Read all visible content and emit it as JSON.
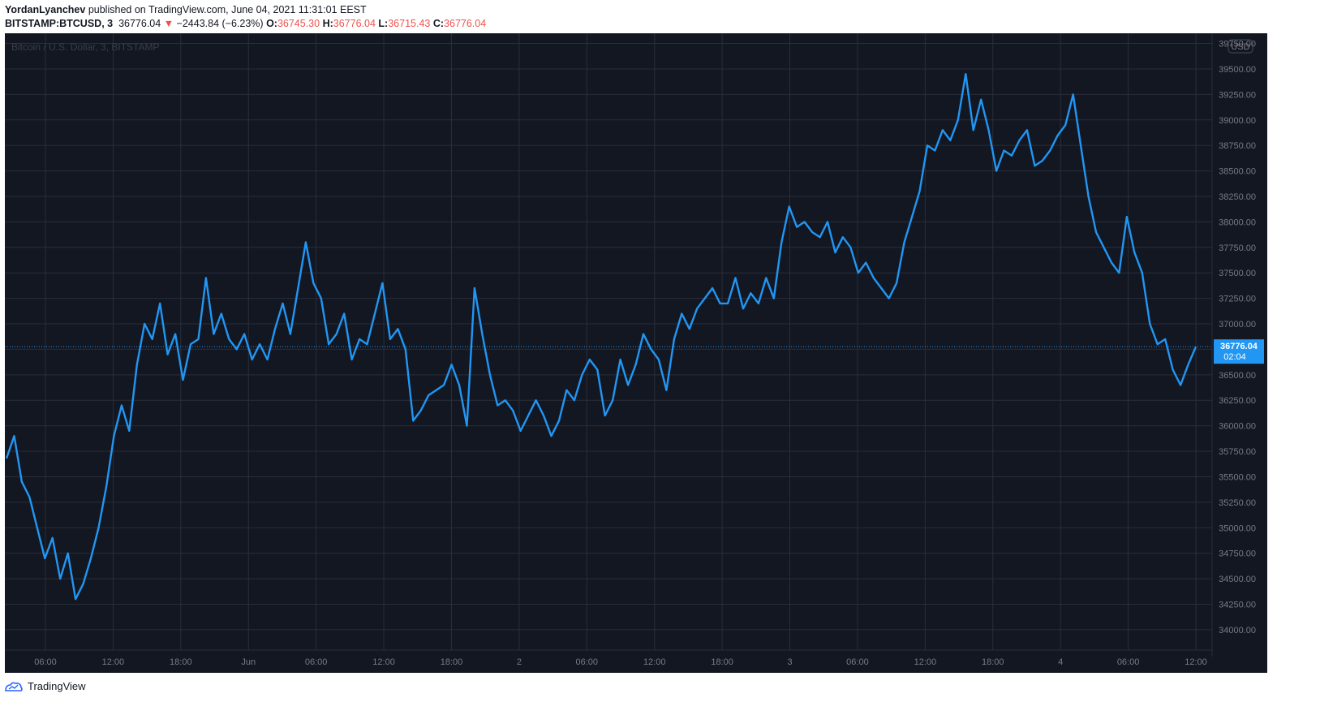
{
  "header": {
    "author": "YordanLyanchev",
    "published_text": "published on TradingView.com, June 04, 2021 11:31:01 EEST",
    "symbol": "BITSTAMP:BTCUSD, 3",
    "last": "36776.04",
    "change_arrow": "▼",
    "change": "−2443.84 (−6.23%)",
    "o_label": "O:",
    "o_value": "36745.30",
    "h_label": "H:",
    "h_value": "36776.04",
    "l_label": "L:",
    "l_value": "36715.43",
    "c_label": "C:",
    "c_value": "36776.04"
  },
  "footer": {
    "brand": "TradingView"
  },
  "colors": {
    "background": "#131722",
    "grid": "#363a45",
    "line": "#2196f3",
    "text": "#787b86",
    "price_tag": "#2196f3"
  },
  "chart_data": {
    "type": "line",
    "watermark": "Bitcoin / U.S. Dollar, 3, BITSTAMP",
    "currency_badge": "USD",
    "y_ticks": [
      "39750.00",
      "39500.00",
      "39250.00",
      "39000.00",
      "38750.00",
      "38500.00",
      "38250.00",
      "38000.00",
      "37750.00",
      "37500.00",
      "37250.00",
      "37000.00",
      "36750.00",
      "36500.00",
      "36250.00",
      "36000.00",
      "35750.00",
      "35500.00",
      "35250.00",
      "35000.00",
      "34750.00",
      "34500.00",
      "34250.00",
      "34000.00"
    ],
    "y_tick_values": [
      39750,
      39500,
      39250,
      39000,
      38750,
      38500,
      38250,
      38000,
      37750,
      37500,
      37250,
      37000,
      36750,
      36500,
      36250,
      36000,
      35750,
      35500,
      35250,
      35000,
      34750,
      34500,
      34250,
      34000
    ],
    "x_ticks": [
      "06:00",
      "12:00",
      "18:00",
      "Jun",
      "06:00",
      "12:00",
      "18:00",
      "2",
      "06:00",
      "12:00",
      "18:00",
      "3",
      "06:00",
      "12:00",
      "18:00",
      "4",
      "06:00",
      "12:00"
    ],
    "ylim": [
      33800,
      39850
    ],
    "last_price": {
      "value": 36776.04,
      "label": "36776.04",
      "countdown": "02:04"
    },
    "series": [
      {
        "values": [
          35680,
          35900,
          35450,
          35300,
          35000,
          34700,
          34900,
          34500,
          34750,
          34300,
          34450,
          34700,
          35000,
          35400,
          35900,
          36200,
          35950,
          36600,
          37000,
          36850,
          37200,
          36700,
          36900,
          36450,
          36800,
          36850,
          37450,
          36900,
          37100,
          36850,
          36750,
          36900,
          36650,
          36800,
          36650,
          36950,
          37200,
          36900,
          37350,
          37800,
          37400,
          37250,
          36800,
          36900,
          37100,
          36650,
          36850,
          36800,
          37100,
          37400,
          36850,
          36950,
          36750,
          36050,
          36150,
          36300,
          36350,
          36400,
          36600,
          36400,
          36000,
          37350,
          36900,
          36500,
          36200,
          36250,
          36150,
          35950,
          36100,
          36250,
          36100,
          35900,
          36050,
          36350,
          36250,
          36500,
          36650,
          36550,
          36100,
          36250,
          36650,
          36400,
          36600,
          36900,
          36750,
          36650,
          36350,
          36850,
          37100,
          36950,
          37150,
          37250,
          37350,
          37200,
          37200,
          37450,
          37150,
          37300,
          37200,
          37450,
          37250,
          37800,
          38150,
          37950,
          38000,
          37900,
          37850,
          38000,
          37700,
          37850,
          37750,
          37500,
          37600,
          37450,
          37350,
          37250,
          37400,
          37800,
          38050,
          38300,
          38750,
          38700,
          38900,
          38800,
          39000,
          39450,
          38900,
          39200,
          38900,
          38500,
          38700,
          38650,
          38800,
          38900,
          38550,
          38600,
          38700,
          38850,
          38950,
          39250,
          38750,
          38250,
          37900,
          37750,
          37600,
          37500,
          38050,
          37700,
          37500,
          37000,
          36800,
          36850,
          36550,
          36400,
          36600,
          36776
        ]
      }
    ]
  }
}
